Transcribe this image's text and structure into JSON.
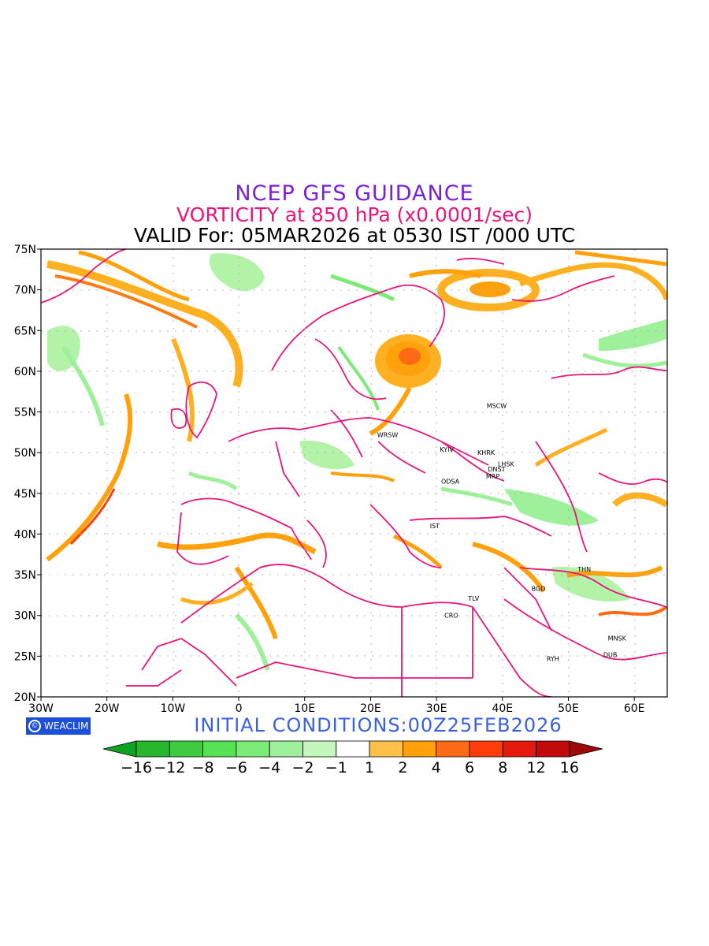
{
  "titles": {
    "line1": "NCEP GFS GUIDANCE",
    "line2": "VORTICITY at 850 hPa (x0.0001/sec)",
    "line3": "VALID For: 05MAR2026 at 0530 IST /000 UTC"
  },
  "colors": {
    "title1": "#7a1fd8",
    "title2": "#e8157a",
    "borders": "#e8157a",
    "initial": "#3a5fe0"
  },
  "axes": {
    "lat_labels": [
      "75N",
      "70N",
      "65N",
      "60N",
      "55N",
      "50N",
      "45N",
      "40N",
      "35N",
      "30N",
      "25N",
      "20N"
    ],
    "lon_labels": [
      "30W",
      "20W",
      "10W",
      "0",
      "10E",
      "20E",
      "30E",
      "40E",
      "50E",
      "60E"
    ],
    "lat_range": [
      20,
      75
    ],
    "lon_range": [
      -30,
      65
    ]
  },
  "cities": [
    {
      "name": "MSCW",
      "lon": 37.6,
      "lat": 55.8
    },
    {
      "name": "WRSW",
      "lon": 21.0,
      "lat": 52.2
    },
    {
      "name": "KYIV",
      "lon": 30.5,
      "lat": 50.4
    },
    {
      "name": "KHRK",
      "lon": 36.2,
      "lat": 50.0
    },
    {
      "name": "LHSK",
      "lon": 39.3,
      "lat": 48.6
    },
    {
      "name": "DNST",
      "lon": 37.8,
      "lat": 48.0
    },
    {
      "name": "MRP",
      "lon": 37.5,
      "lat": 47.1
    },
    {
      "name": "ODSA",
      "lon": 30.7,
      "lat": 46.5
    },
    {
      "name": "IST",
      "lon": 29.0,
      "lat": 41.0
    },
    {
      "name": "THN",
      "lon": 51.4,
      "lat": 35.7
    },
    {
      "name": "BGD",
      "lon": 44.4,
      "lat": 33.3
    },
    {
      "name": "TLV",
      "lon": 34.8,
      "lat": 32.1
    },
    {
      "name": "CRO",
      "lon": 31.2,
      "lat": 30.0
    },
    {
      "name": "MNSK",
      "lon": 56.0,
      "lat": 27.2
    },
    {
      "name": "DUB",
      "lon": 55.3,
      "lat": 25.2
    },
    {
      "name": "RYH",
      "lon": 46.7,
      "lat": 24.7
    }
  ],
  "legend": {
    "labels": [
      "−16",
      "−12",
      "−8",
      "−6",
      "−4",
      "−2",
      "−1",
      "1",
      "2",
      "4",
      "6",
      "8",
      "12",
      "16"
    ],
    "colors": [
      "#0ea320",
      "#27b62e",
      "#3fcb3f",
      "#56e254",
      "#7bea77",
      "#9ff09a",
      "#c4f7bc",
      "#ffffff",
      "#ffc04a",
      "#ffa10a",
      "#ff6a14",
      "#ff3d0a",
      "#e6190f",
      "#c20a0a",
      "#9c0a0a"
    ]
  },
  "badge": "WEACLIM",
  "initial_conditions": "INITIAL CONDITIONS:00Z25FEB2026"
}
